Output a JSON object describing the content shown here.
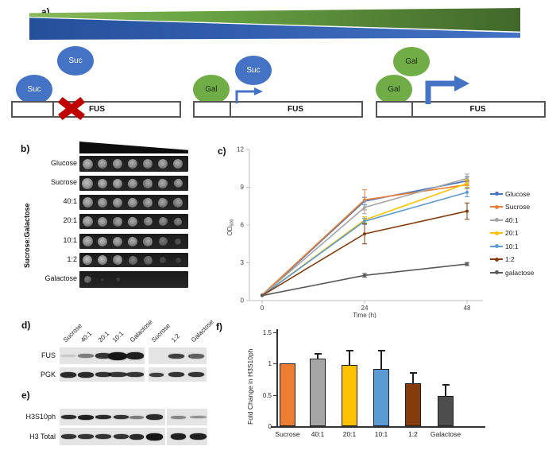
{
  "panels": {
    "a": {
      "label": "a)",
      "colors": {
        "suc": "#4472C4",
        "gal": "#70AD47",
        "block_x": "#C00000",
        "arrow": "#4472C4"
      },
      "constructs": [
        {
          "circles": [
            {
              "label": "Suc"
            },
            {
              "label": "Suc"
            }
          ],
          "gene": "FUS",
          "state": "blocked"
        },
        {
          "circles": [
            {
              "label": "Suc"
            },
            {
              "label": "Gal"
            }
          ],
          "gene": "FUS",
          "state": "low-expression"
        },
        {
          "circles": [
            {
              "label": "Gal"
            },
            {
              "label": "Gal"
            }
          ],
          "gene": "FUS",
          "state": "high-expression"
        }
      ]
    },
    "b": {
      "label": "b)",
      "axis_label": "Sucrose:Galactose",
      "rows": [
        {
          "label": "Glucose",
          "spots": [
            [
              13,
              0.85,
              0
            ],
            [
              12,
              0.8,
              0
            ],
            [
              12,
              0.8,
              0
            ],
            [
              12,
              0.8,
              0
            ],
            [
              12,
              0.75,
              0
            ],
            [
              12,
              0.8,
              0
            ],
            [
              12,
              0.8,
              0
            ]
          ]
        },
        {
          "label": "Sucrose",
          "spots": [
            [
              14,
              0.9,
              0
            ],
            [
              12,
              0.85,
              0
            ],
            [
              12,
              0.85,
              0
            ],
            [
              12,
              0.8,
              1
            ],
            [
              12,
              0.75,
              1
            ],
            [
              12,
              0.8,
              1
            ],
            [
              11,
              0.75,
              1
            ]
          ]
        },
        {
          "label": "40:1",
          "spots": [
            [
              13,
              0.85,
              0
            ],
            [
              12,
              0.8,
              0
            ],
            [
              12,
              0.8,
              0
            ],
            [
              12,
              0.8,
              1
            ],
            [
              12,
              0.78,
              1
            ],
            [
              12,
              0.75,
              1
            ],
            [
              12,
              0.7,
              1
            ]
          ]
        },
        {
          "label": "20:1",
          "spots": [
            [
              13,
              0.85,
              0
            ],
            [
              12,
              0.8,
              0
            ],
            [
              12,
              0.75,
              1
            ],
            [
              12,
              0.78,
              1
            ],
            [
              11,
              0.7,
              1
            ],
            [
              11,
              0.65,
              1
            ],
            [
              10,
              0.6,
              1
            ]
          ]
        },
        {
          "label": "10:1",
          "spots": [
            [
              13,
              0.85,
              0
            ],
            [
              12,
              0.85,
              0
            ],
            [
              12,
              0.8,
              0
            ],
            [
              12,
              0.8,
              1
            ],
            [
              12,
              0.75,
              1
            ],
            [
              11,
              0.5,
              1
            ],
            [
              8,
              0.3,
              1
            ]
          ]
        },
        {
          "label": "1:2",
          "spots": [
            [
              12,
              0.9,
              0
            ],
            [
              12,
              0.88,
              0
            ],
            [
              12,
              0.8,
              1
            ],
            [
              11,
              0.55,
              1
            ],
            [
              11,
              0.5,
              1
            ],
            [
              8,
              0.25,
              1
            ],
            [
              7,
              0.2,
              1
            ]
          ]
        },
        {
          "label": "Galactose",
          "spots": [
            [
              9,
              0.5,
              1
            ],
            [
              4,
              0.15,
              1
            ],
            [
              5,
              0.18,
              1
            ],
            [
              0,
              0,
              0
            ],
            [
              0,
              0,
              0
            ],
            [
              0,
              0,
              0
            ],
            [
              0,
              0,
              0
            ]
          ]
        }
      ]
    },
    "c": {
      "label": "c)",
      "chart_ref": 0
    },
    "d": {
      "label": "d)",
      "lane_labels": [
        "Sucrose",
        "40:1",
        "20:1",
        "10:1",
        "Galactose",
        "Sucrose",
        "1:2",
        "Galactose"
      ],
      "rows": [
        {
          "label": "FUS",
          "bands": [
            [
              0.12,
              3
            ],
            [
              0.5,
              5
            ],
            [
              0.85,
              7
            ],
            [
              1,
              10
            ],
            [
              0.95,
              9
            ],
            [
              0,
              0
            ],
            [
              0.8,
              6
            ],
            [
              0.65,
              6
            ]
          ]
        },
        {
          "label": "PGK",
          "bands": [
            [
              0.9,
              7
            ],
            [
              0.9,
              7
            ],
            [
              0.85,
              6
            ],
            [
              0.85,
              6
            ],
            [
              0.85,
              6
            ],
            [
              0.8,
              5
            ],
            [
              0.85,
              6
            ],
            [
              0.85,
              6
            ]
          ]
        }
      ]
    },
    "e": {
      "label": "e)",
      "rows": [
        {
          "label": "H3S10ph",
          "bands": [
            [
              0.9,
              5
            ],
            [
              0.95,
              6
            ],
            [
              0.9,
              5
            ],
            [
              0.85,
              5
            ],
            [
              0.5,
              4
            ],
            [
              0.9,
              7
            ],
            [
              0.45,
              4
            ],
            [
              0.4,
              3
            ]
          ]
        },
        {
          "label": "H3 Total",
          "bands": [
            [
              0.85,
              6
            ],
            [
              0.85,
              6
            ],
            [
              0.85,
              6
            ],
            [
              0.85,
              6
            ],
            [
              0.9,
              7
            ],
            [
              1,
              9
            ],
            [
              0.95,
              8
            ],
            [
              0.95,
              8
            ]
          ]
        }
      ]
    },
    "f": {
      "label": "f)",
      "chart_ref": 1
    }
  },
  "chart_data": [
    {
      "type": "line",
      "title": "",
      "xlabel": "Time (h)",
      "ylabel": "OD600",
      "ylabel_main": "OD",
      "ylabel_sub": "600",
      "x": [
        0,
        24,
        48
      ],
      "xticks": [
        "0",
        "24",
        "48"
      ],
      "ylim": [
        0,
        12
      ],
      "yticks": [
        0,
        3,
        6,
        9,
        12
      ],
      "grid": false,
      "legend_position": "right",
      "series": [
        {
          "name": "Glucose",
          "color": "#4472C4",
          "values": [
            0.4,
            7.9,
            9.5
          ],
          "err": [
            0.05,
            0.3,
            0.35
          ]
        },
        {
          "name": "Sucrose",
          "color": "#ED7D31",
          "values": [
            0.45,
            8.0,
            9.2
          ],
          "err": [
            0.05,
            0.8,
            0.3
          ]
        },
        {
          "name": "40:1",
          "color": "#A5A5A5",
          "values": [
            0.4,
            7.4,
            9.7
          ],
          "err": [
            0.05,
            0.5,
            0.35
          ]
        },
        {
          "name": "20:1",
          "color": "#FFC000",
          "values": [
            0.4,
            6.4,
            9.3
          ],
          "err": [
            0.05,
            0.25,
            0.3
          ]
        },
        {
          "name": "10:1",
          "color": "#5B9BD5",
          "values": [
            0.4,
            6.3,
            8.6
          ],
          "err": [
            0.05,
            0.25,
            0.35
          ]
        },
        {
          "name": "1:2",
          "color": "#843C0C",
          "values": [
            0.4,
            5.3,
            7.1
          ],
          "err": [
            0.05,
            0.8,
            0.65
          ]
        },
        {
          "name": "galactose",
          "color": "#595959",
          "values": [
            0.4,
            2.0,
            2.9
          ],
          "err": [
            0.05,
            0.15,
            0.12
          ]
        }
      ]
    },
    {
      "type": "bar",
      "categories": [
        "Sucrose",
        "40:1",
        "20:1",
        "10:1",
        "1:2",
        "Galactose"
      ],
      "values": [
        1.0,
        1.08,
        0.97,
        0.91,
        0.68,
        0.48
      ],
      "errors": [
        0.0,
        0.08,
        0.24,
        0.3,
        0.18,
        0.19
      ],
      "colors": [
        "#ED7D31",
        "#A5A5A5",
        "#FFC000",
        "#5B9BD5",
        "#843C0C",
        "#4D4D4D"
      ],
      "title": "",
      "xlabel": "",
      "ylabel": "Fold Change in H3S10ph",
      "ylim": [
        0,
        1.5
      ],
      "yticks": [
        "0",
        "0.5",
        "1",
        "1.5"
      ],
      "grid": false
    }
  ]
}
